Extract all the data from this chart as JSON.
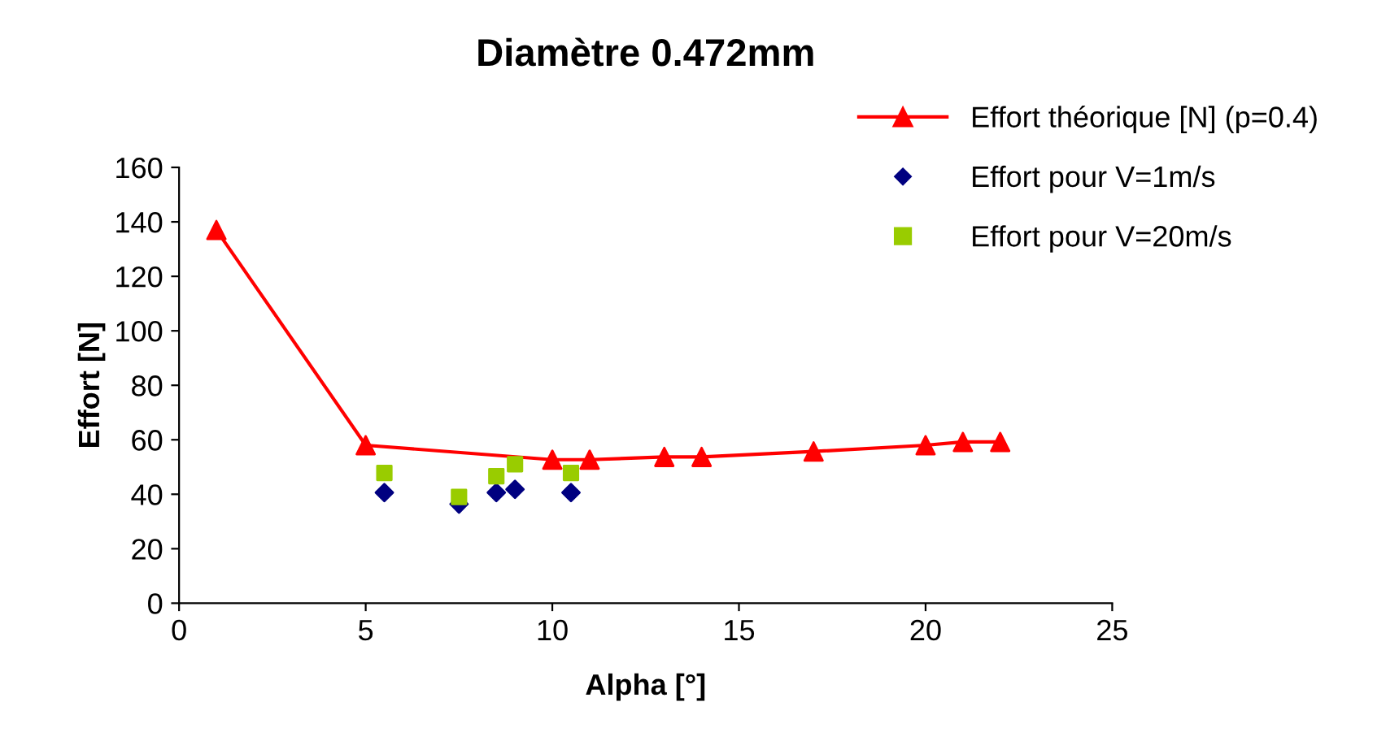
{
  "chart_data": {
    "type": "scatter",
    "title": "Diamètre 0.472mm",
    "xlabel": "Alpha [°]",
    "ylabel": "Effort [N]",
    "xlim": [
      0,
      25
    ],
    "xticks": [
      0,
      5,
      10,
      15,
      20,
      25
    ],
    "ylim": [
      0,
      160
    ],
    "yticks": [
      0,
      20,
      40,
      60,
      80,
      100,
      120,
      140,
      160
    ],
    "grid": false,
    "legend": "top right",
    "series": [
      {
        "name": "Effort théorique [N] (p=0.4)",
        "type": "line",
        "color": "#ff0000",
        "marker": "triangle",
        "line_style": "solid",
        "x": [
          1,
          5,
          10,
          11,
          13,
          14,
          17,
          20,
          21,
          22
        ],
        "values": [
          137,
          58,
          52.7,
          52.7,
          53.7,
          53.7,
          55.7,
          58,
          59.2,
          59.2
        ]
      },
      {
        "name": "Effort pour V=1m/s",
        "color": "#000080",
        "marker": "diamond",
        "x": [
          5.5,
          7.5,
          8.5,
          9,
          10.5
        ],
        "values": [
          40.6,
          36.4,
          40.6,
          41.8,
          40.6
        ]
      },
      {
        "name": "Effort pour V=20m/s",
        "color": "#99cc00",
        "marker": "square",
        "x": [
          5.5,
          7.5,
          8.5,
          9,
          10.5
        ],
        "values": [
          47.8,
          39,
          46.6,
          51,
          47.8
        ]
      }
    ]
  }
}
